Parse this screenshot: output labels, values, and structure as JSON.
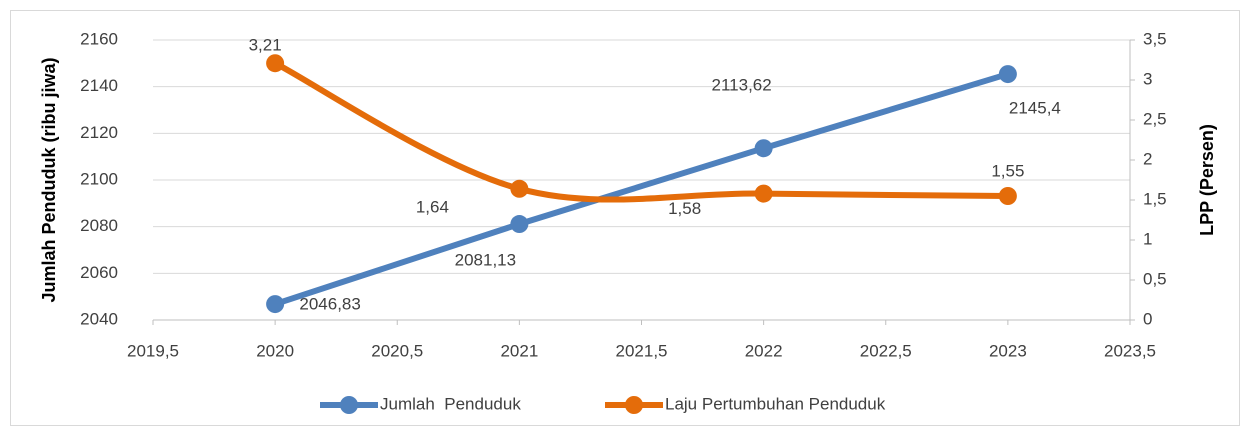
{
  "chart_data": {
    "type": "line",
    "y_axis_label": "Jumlah Penduduk (ribu jiwa)",
    "y2_axis_label": "LPP (Persen)",
    "x": [
      2020,
      2021,
      2022,
      2023
    ],
    "xlim": [
      2019.5,
      2023.5
    ],
    "xticks": [
      {
        "value": 2019.5,
        "label": "2019,5"
      },
      2020,
      {
        "value": 2020.5,
        "label": "2020,5"
      },
      2021,
      {
        "value": 2021.5,
        "label": "2021,5"
      },
      2022,
      {
        "value": 2022.5,
        "label": "2022,5"
      },
      2023,
      {
        "value": 2023.5,
        "label": "2023,5"
      }
    ],
    "ylim": [
      2040,
      2160
    ],
    "yticks": [
      2040,
      2060,
      2080,
      2100,
      2120,
      2140,
      2160
    ],
    "y2lim": [
      0,
      3.5
    ],
    "y2ticks": [
      0,
      {
        "value": 0.5,
        "label": "0,5"
      },
      1,
      {
        "value": 1.5,
        "label": "1,5"
      },
      2,
      {
        "value": 2.5,
        "label": "2,5"
      },
      3,
      {
        "value": 3.5,
        "label": "3,5"
      }
    ],
    "grid": true,
    "legend": "bottom",
    "series": [
      {
        "name": "Jumlah  Penduduk",
        "color": "#4f81bd",
        "smooth": false,
        "values": [
          2046.83,
          2081.13,
          2113.62,
          2145.4
        ],
        "value_labels": [
          "2046,83",
          "2081,13",
          "2113,62",
          "2145,4"
        ]
      },
      {
        "name": "Laju Pertumbuhan Penduduk",
        "color": "#e46c0a",
        "axis": "y2",
        "smooth": true,
        "values": [
          3.21,
          1.64,
          1.58,
          1.55
        ],
        "value_labels": [
          "3,21",
          "1,64",
          "1,58",
          "1,55"
        ]
      }
    ]
  }
}
